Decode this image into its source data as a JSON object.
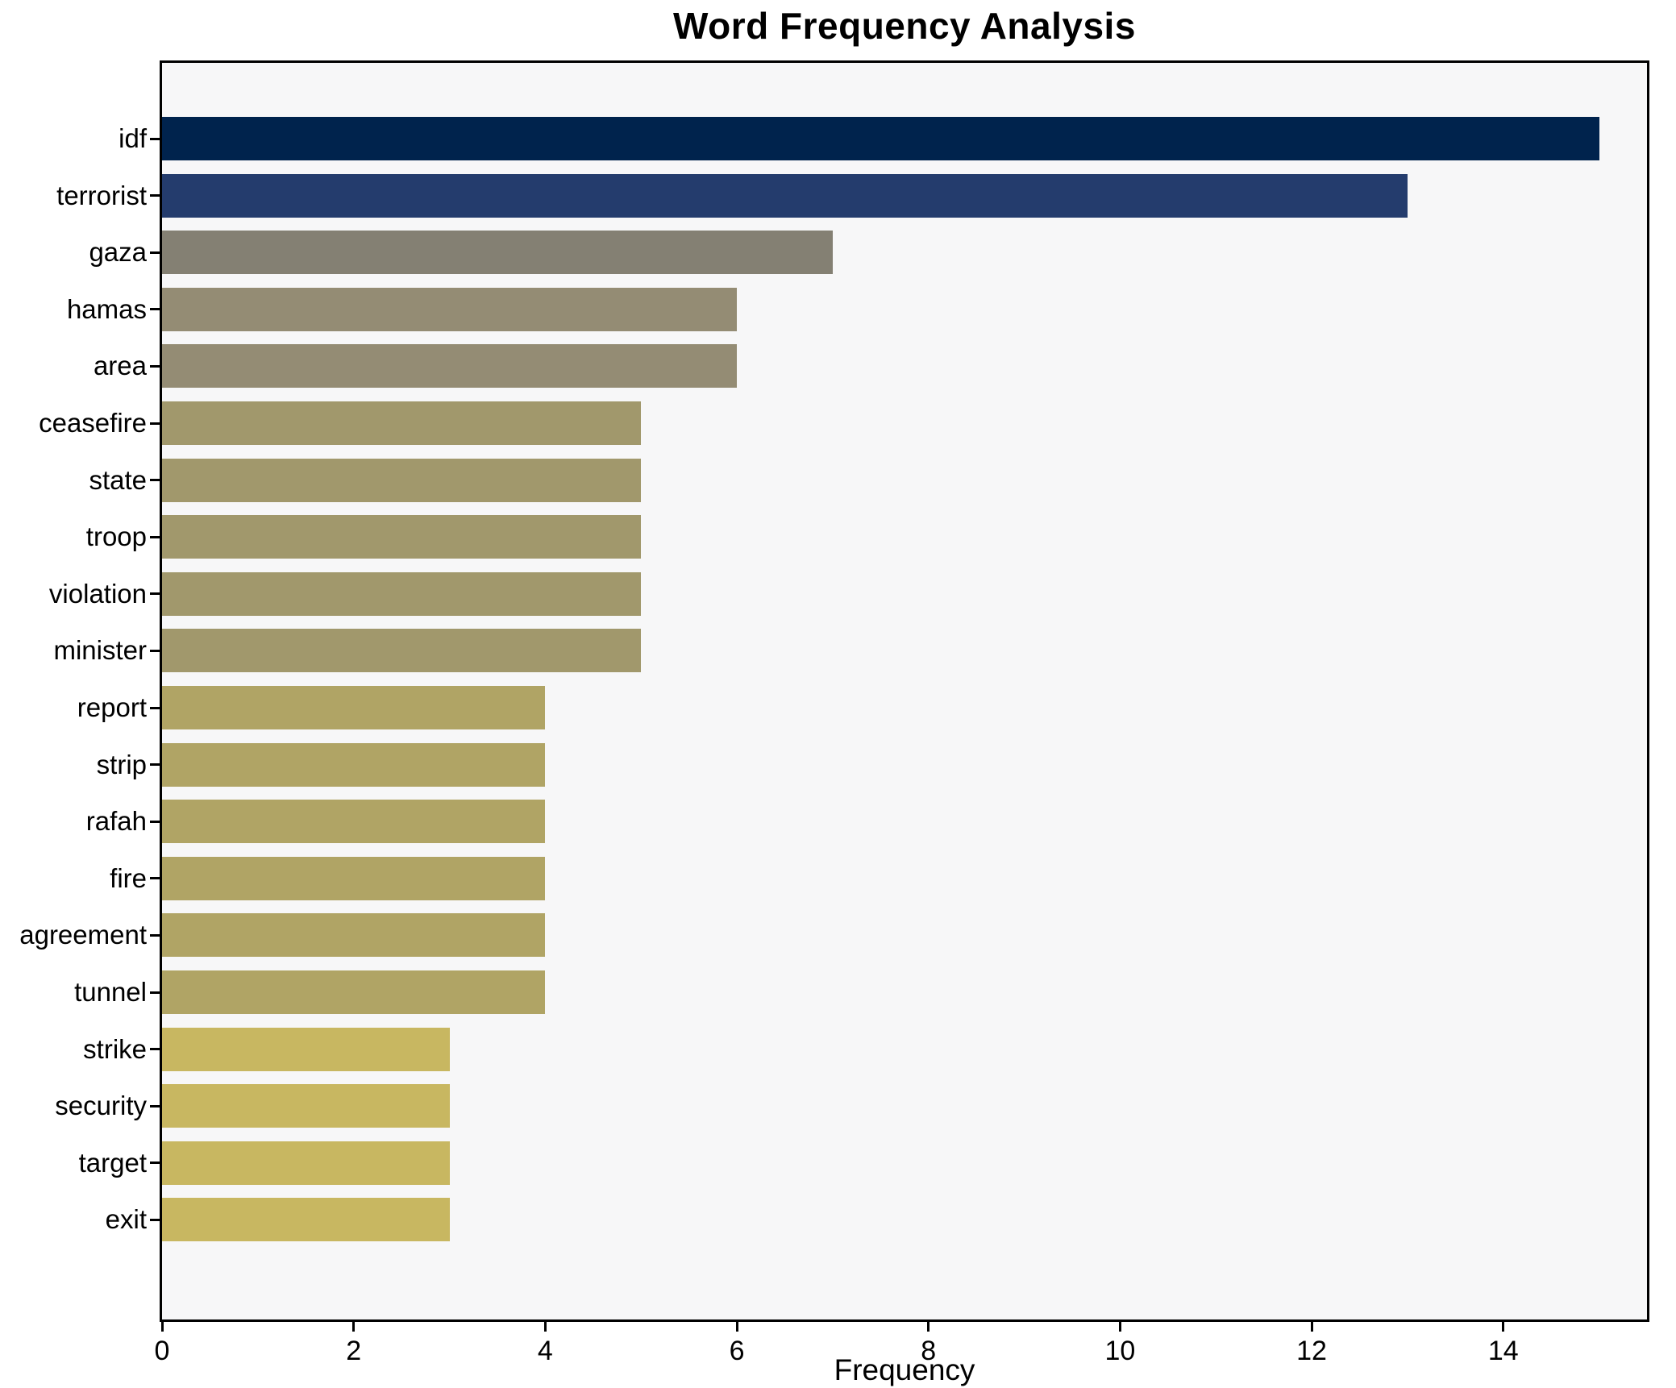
{
  "title": "Word Frequency Analysis",
  "chart_data": {
    "type": "bar",
    "orientation": "horizontal",
    "title": "Word Frequency Analysis",
    "xlabel": "Frequency",
    "ylabel": "",
    "categories": [
      "idf",
      "terrorist",
      "gaza",
      "hamas",
      "area",
      "ceasefire",
      "state",
      "troop",
      "violation",
      "minister",
      "report",
      "strip",
      "rafah",
      "fire",
      "agreement",
      "tunnel",
      "strike",
      "security",
      "target",
      "exit"
    ],
    "values": [
      15,
      13,
      7,
      6,
      6,
      5,
      5,
      5,
      5,
      5,
      4,
      4,
      4,
      4,
      4,
      4,
      3,
      3,
      3,
      3
    ],
    "bar_colors": [
      "#00234d",
      "#243c6d",
      "#848073",
      "#948c74",
      "#948c74",
      "#a1986c",
      "#a1986c",
      "#a1986c",
      "#a1986c",
      "#a1986c",
      "#b0a465",
      "#b0a465",
      "#b0a465",
      "#b0a465",
      "#b0a465",
      "#b0a465",
      "#c8b761",
      "#c8b761",
      "#c8b761",
      "#c8b761"
    ],
    "xlim": [
      0,
      15.5
    ],
    "xticks": [
      0,
      2,
      4,
      6,
      8,
      10,
      12,
      14
    ],
    "grid": false,
    "legend": null,
    "plot_bg": "#f7f7f8",
    "figure_bg": "#ffffff",
    "spine_color": "#000000"
  }
}
